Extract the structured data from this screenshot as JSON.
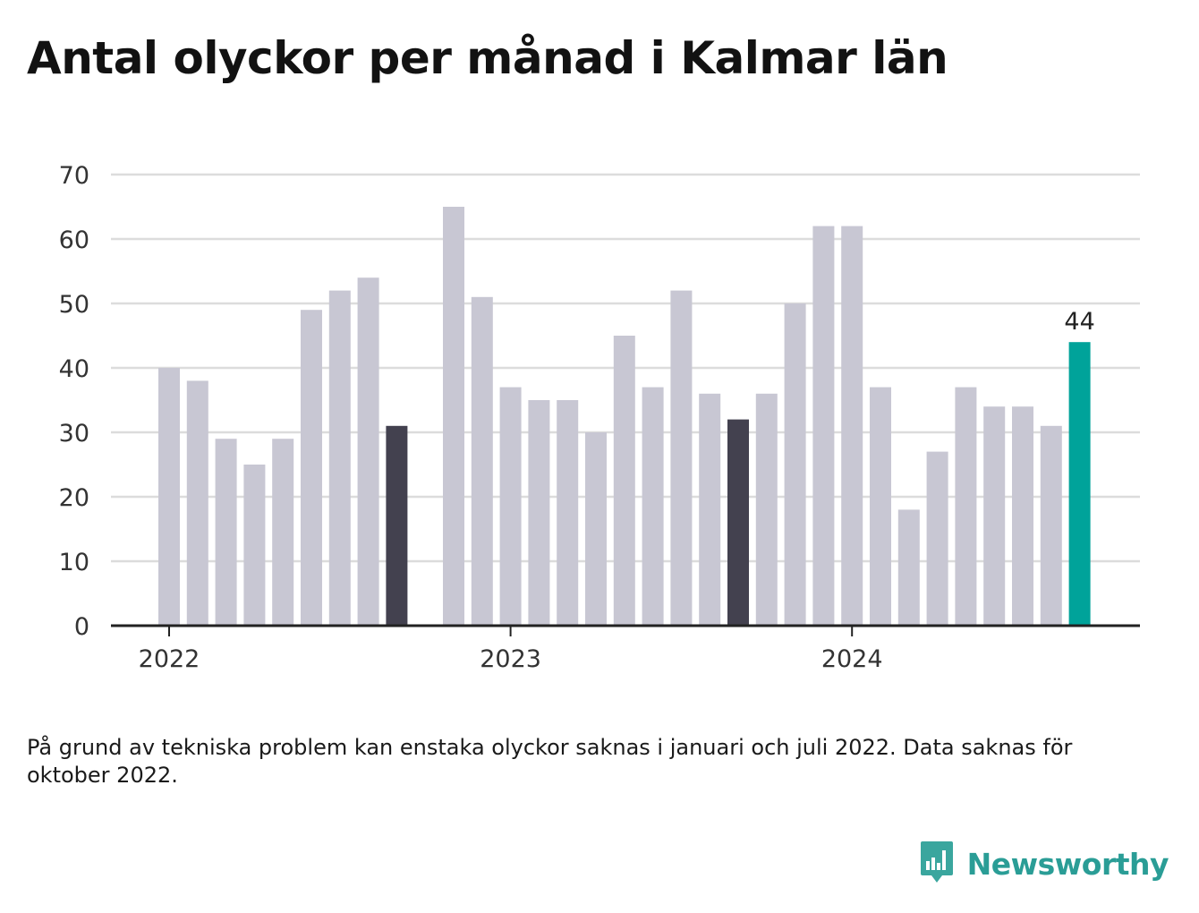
{
  "title": "Antal olyckor per månad i Kalmar län",
  "note": "På grund av tekniska problem kan enstaka olyckor saknas i januari och juli 2022. Data saknas för oktober 2022.",
  "brand": {
    "name": "Newsworthy",
    "icon": "bar-chart-speech-bubble-icon"
  },
  "colors": {
    "default": "#c8c7d3",
    "highlight": "#43414f",
    "latest": "#00a39a",
    "grid": "#dcdcdc",
    "axis": "#222222"
  },
  "chart_data": {
    "type": "bar",
    "title": "Antal olyckor per månad i Kalmar län",
    "xlabel": "",
    "ylabel": "",
    "ylim": [
      0,
      70
    ],
    "yticks": [
      "0",
      "10",
      "20",
      "30",
      "40",
      "50",
      "60",
      "70"
    ],
    "xticks": [
      "2022",
      "2023",
      "2024"
    ],
    "grid": true,
    "categories": [
      "2022-01",
      "2022-02",
      "2022-03",
      "2022-04",
      "2022-05",
      "2022-06",
      "2022-07",
      "2022-08",
      "2022-09",
      "2022-10",
      "2022-11",
      "2022-12",
      "2023-01",
      "2023-02",
      "2023-03",
      "2023-04",
      "2023-05",
      "2023-06",
      "2023-07",
      "2023-08",
      "2023-09",
      "2023-10",
      "2023-11",
      "2023-12",
      "2024-01",
      "2024-02",
      "2024-03",
      "2024-04",
      "2024-05",
      "2024-06",
      "2024-07",
      "2024-08",
      "2024-09"
    ],
    "values": [
      40,
      38,
      29,
      25,
      29,
      49,
      52,
      54,
      31,
      null,
      65,
      51,
      37,
      35,
      35,
      30,
      45,
      37,
      52,
      36,
      32,
      36,
      50,
      62,
      62,
      37,
      18,
      27,
      37,
      34,
      34,
      31,
      44
    ],
    "highlight_indices": [
      8,
      20
    ],
    "latest_index": 32,
    "data_labels": [
      {
        "index": 32,
        "text": "44"
      }
    ]
  }
}
